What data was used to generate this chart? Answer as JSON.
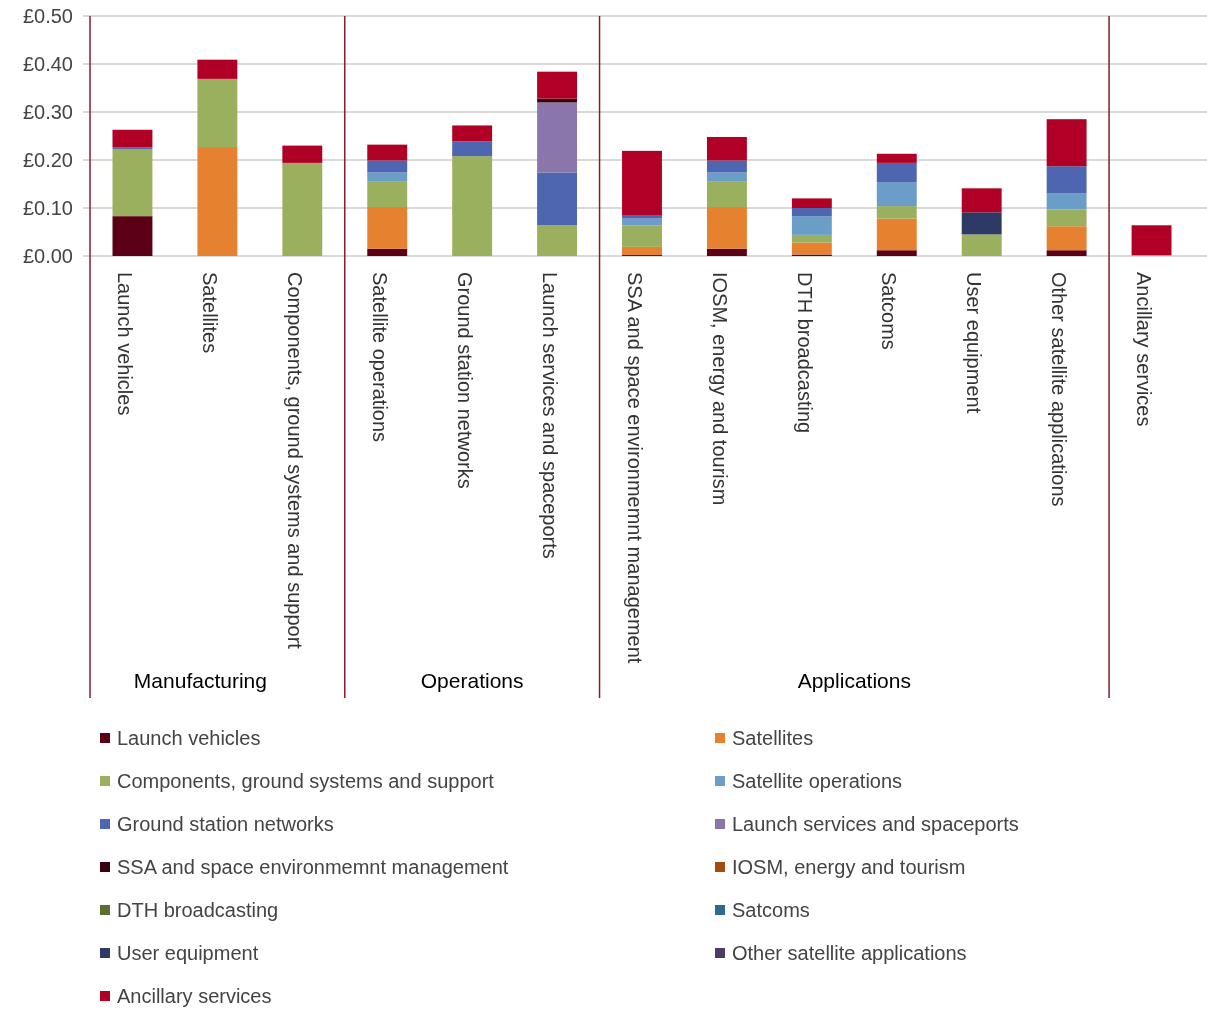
{
  "chart_data": {
    "type": "bar",
    "stacked": true,
    "categories": [
      "Launch vehicles",
      "Satellites",
      "Components, ground systems and support",
      "Satellite operations",
      "Ground station networks",
      "Launch services and spaceports",
      "SSA and space environmemnt management",
      "IOSM, energy and tourism",
      "DTH broadcasting",
      "Satcoms",
      "User equipment",
      "Other satellite applications",
      "Ancillary services"
    ],
    "series": [
      {
        "name": "Launch vehicles",
        "color": "#5c0016",
        "values": [
          0.083,
          null,
          null,
          0.015,
          null,
          null,
          0.002,
          0.015,
          0.003,
          0.012,
          null,
          0.012,
          null
        ]
      },
      {
        "name": "Satellites",
        "color": "#e6812f",
        "values": [
          null,
          0.227,
          null,
          0.087,
          null,
          null,
          0.017,
          0.087,
          0.025,
          0.066,
          null,
          0.05,
          null
        ]
      },
      {
        "name": "Components, ground systems and support",
        "color": "#9bb05e",
        "values": [
          0.14,
          0.142,
          0.194,
          0.054,
          0.208,
          0.064,
          0.045,
          0.054,
          0.016,
          0.026,
          0.045,
          0.035,
          0.002
        ]
      },
      {
        "name": "Satellite operations",
        "color": "#6a9ec8",
        "values": [
          null,
          null,
          null,
          0.018,
          null,
          null,
          0.014,
          0.018,
          0.039,
          0.049,
          null,
          0.034,
          null
        ]
      },
      {
        "name": "Ground station networks",
        "color": "#4e66b0",
        "values": [
          0.003,
          null,
          null,
          0.025,
          0.031,
          0.11,
          0.006,
          0.025,
          0.017,
          0.041,
          null,
          0.056,
          null
        ]
      },
      {
        "name": "Launch services and spaceports",
        "color": "#8a76ab",
        "values": [
          null,
          null,
          null,
          null,
          null,
          0.146,
          null,
          null,
          null,
          null,
          null,
          null,
          null
        ]
      },
      {
        "name": "SSA and space environmemnt management",
        "color": "#3a0010",
        "values": [
          null,
          null,
          null,
          null,
          null,
          0.008,
          null,
          null,
          null,
          null,
          null,
          null,
          null
        ]
      },
      {
        "name": "IOSM, energy and tourism",
        "color": "#a04d10",
        "values": [
          null,
          null,
          null,
          null,
          null,
          null,
          null,
          null,
          null,
          null,
          null,
          null,
          null
        ]
      },
      {
        "name": "DTH broadcasting",
        "color": "#5a7030",
        "values": [
          null,
          null,
          null,
          null,
          null,
          null,
          null,
          null,
          null,
          null,
          null,
          null,
          null
        ]
      },
      {
        "name": "Satcoms",
        "color": "#2f6b8f",
        "values": [
          null,
          null,
          null,
          null,
          null,
          null,
          null,
          null,
          null,
          null,
          null,
          null,
          null
        ]
      },
      {
        "name": "User equipment",
        "color": "#2e3a66",
        "values": [
          null,
          null,
          null,
          null,
          null,
          null,
          null,
          null,
          null,
          null,
          0.046,
          null,
          null
        ]
      },
      {
        "name": "Other satellite applications",
        "color": "#4d3a6b",
        "values": [
          null,
          null,
          null,
          null,
          null,
          null,
          null,
          null,
          null,
          null,
          null,
          null,
          null
        ]
      },
      {
        "name": "Ancillary services",
        "color": "#b00026",
        "values": [
          0.037,
          0.04,
          0.036,
          0.033,
          0.033,
          0.056,
          0.135,
          0.049,
          0.02,
          0.019,
          0.05,
          0.098,
          0.062
        ]
      }
    ],
    "ylim": [
      0,
      0.5
    ],
    "yticks": [
      {
        "value": 0,
        "label": "£0.00"
      },
      {
        "value": 0.1,
        "label": "£0.10"
      },
      {
        "value": 0.2,
        "label": "£0.20"
      },
      {
        "value": 0.3,
        "label": "£0.30"
      },
      {
        "value": 0.4,
        "label": "£0.40"
      },
      {
        "value": 0.5,
        "label": "£0.50"
      }
    ],
    "grid": "y",
    "legend": "bottom",
    "annotations": [
      "Manufacturing",
      "Operations",
      "Applications"
    ]
  }
}
